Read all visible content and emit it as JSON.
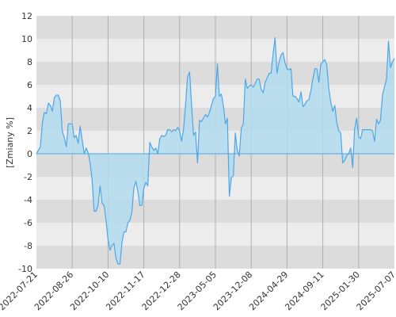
{
  "chart_data": {
    "type": "area",
    "title": "",
    "xlabel": "",
    "ylabel": "[Zmiany %]",
    "ylim": [
      -10,
      12
    ],
    "yticks": [
      -10,
      -8,
      -6,
      -4,
      -2,
      0,
      2,
      4,
      6,
      8,
      10,
      12
    ],
    "grid": true,
    "legend": "none",
    "x_ticks": [
      "2022-07-21",
      "2022-08-26",
      "2022-10-10",
      "2022-11-17",
      "2022-12-28",
      "2023-05-05",
      "2023-12-08",
      "2024-04-29",
      "2024-09-11",
      "2025-01-30",
      "2025-07-07"
    ],
    "colors": {
      "line": "#4da6e8",
      "fill": "#b3dcef",
      "band_dark": "#dcdcdc",
      "band_light": "#ececec",
      "grid": "#b0b0b0"
    },
    "series": [
      {
        "values": [
          0,
          0.3,
          0.6,
          2.7,
          3.6,
          3.5,
          4.4,
          4.2,
          3.7,
          4.9,
          5.1,
          5.1,
          4.6,
          2,
          1.4,
          0.6,
          2.6,
          2.6,
          2.6,
          1.4,
          1.6,
          0.9,
          2.4,
          1.2,
          0,
          0.5,
          0.1,
          -0.8,
          -2.3,
          -5,
          -5,
          -4.5,
          -2.8,
          -4.3,
          -4.5,
          -5.8,
          -7.5,
          -8.4,
          -8,
          -7.8,
          -9.1,
          -9.6,
          -9.6,
          -7.7,
          -6.8,
          -6.8,
          -6,
          -5.8,
          -5.1,
          -3,
          -2.4,
          -3.3,
          -4.5,
          -4.5,
          -3,
          -2.5,
          -2.8,
          1,
          0.6,
          0.3,
          0.5,
          0,
          1.3,
          1.6,
          1.5,
          1.6,
          2.1,
          2.1,
          1.9,
          2.1,
          2.0,
          2.3,
          2.0,
          1.1,
          2.2,
          4.3,
          6.7,
          7.1,
          4.2,
          1.6,
          1.9,
          -0.8,
          2.9,
          2.8,
          3.1,
          3.4,
          3.2,
          3.6,
          4.2,
          4.8,
          5,
          7.8,
          5,
          5.2,
          4.2,
          2.6,
          3.1,
          -3.7,
          -2.1,
          -1.9,
          1.8,
          0.3,
          -0.2,
          2.2,
          2.6,
          6.5,
          5.7,
          5.9,
          6,
          5.8,
          6.1,
          6.5,
          6.5,
          5.6,
          5.3,
          6.2,
          6.6,
          7,
          7,
          8.7,
          10.1,
          7,
          8,
          8.6,
          8.8,
          7.9,
          7.4,
          7.3,
          7.4,
          5,
          5,
          4.8,
          4.5,
          5.4,
          4.1,
          4.3,
          4.6,
          4.7,
          5.5,
          6.5,
          7.4,
          7.4,
          6.2,
          7.8,
          8,
          8.2,
          7.7,
          5.7,
          4.5,
          3.7,
          4.2,
          2.7,
          2,
          1.8,
          -0.8,
          -0.6,
          -0.2,
          0,
          0.5,
          -1.2,
          2.2,
          3.1,
          1.5,
          1.3,
          2.1,
          2.1,
          2.1,
          2.1,
          2.1,
          2,
          1.1,
          3,
          2.6,
          2.9,
          5.1,
          5.8,
          6.5,
          9.8,
          7.5,
          8,
          8.3
        ]
      }
    ]
  }
}
